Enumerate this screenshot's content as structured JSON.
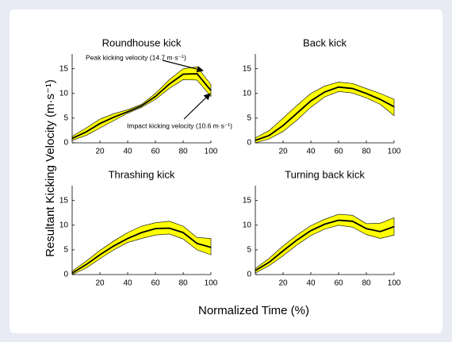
{
  "figure": {
    "xlabel": "Normalized Time (%)",
    "ylabel": "Resultant Kicking Velocity (m·s⁻¹)"
  },
  "chart_data": [
    {
      "type": "band-line",
      "title": "Roundhouse kick",
      "x": [
        0,
        10,
        20,
        30,
        40,
        50,
        60,
        70,
        80,
        90,
        100
      ],
      "values": [
        0.9,
        2.2,
        3.9,
        5.2,
        6.3,
        7.5,
        9.4,
        11.9,
        13.9,
        14.0,
        10.6
      ],
      "band_upper": [
        1.3,
        3.0,
        4.8,
        5.9,
        6.7,
        7.8,
        10.0,
        12.8,
        15.0,
        15.4,
        11.8
      ],
      "band_lower": [
        0.5,
        1.5,
        3.0,
        4.5,
        6.0,
        7.2,
        8.8,
        11.0,
        12.8,
        12.7,
        9.4
      ],
      "color": "#000000",
      "band_color": "#ffff00",
      "xlim": [
        0,
        100
      ],
      "xticks": [
        20,
        40,
        60,
        80,
        100
      ],
      "ylim": [
        0,
        18
      ],
      "yticks": [
        0,
        5,
        10,
        15
      ],
      "annotations": [
        "Peak kicking velocity (14.7 m·s⁻¹)",
        "Impact kicking velocity (10.6 m·s⁻¹)"
      ]
    },
    {
      "type": "band-line",
      "title": "Back kick",
      "x": [
        0,
        10,
        20,
        30,
        40,
        50,
        60,
        70,
        80,
        90,
        100
      ],
      "values": [
        0.5,
        1.5,
        3.5,
        6.0,
        8.5,
        10.3,
        11.3,
        11.0,
        10.0,
        8.8,
        7.3
      ],
      "band_upper": [
        1.0,
        2.5,
        5.0,
        7.6,
        10.0,
        11.5,
        12.3,
        12.0,
        11.0,
        10.0,
        8.8
      ],
      "band_lower": [
        0.0,
        0.8,
        2.3,
        4.6,
        7.2,
        9.3,
        10.4,
        10.1,
        9.1,
        7.8,
        5.5
      ],
      "color": "#000000",
      "band_color": "#ffff00",
      "xlim": [
        0,
        100
      ],
      "xticks": [
        20,
        40,
        60,
        80,
        100
      ],
      "ylim": [
        0,
        18
      ],
      "yticks": [
        0,
        5,
        10,
        15
      ]
    },
    {
      "type": "band-line",
      "title": "Thrashing kick",
      "x": [
        0,
        10,
        20,
        30,
        40,
        50,
        60,
        70,
        80,
        90,
        100
      ],
      "values": [
        0.3,
        2.0,
        4.0,
        5.8,
        7.3,
        8.5,
        9.3,
        9.4,
        8.5,
        6.3,
        5.5
      ],
      "band_upper": [
        0.7,
        2.7,
        4.9,
        6.8,
        8.5,
        9.8,
        10.5,
        10.8,
        9.8,
        7.5,
        7.3
      ],
      "band_lower": [
        0.0,
        1.3,
        3.2,
        5.0,
        6.5,
        7.3,
        8.0,
        8.2,
        7.2,
        5.0,
        4.0
      ],
      "color": "#000000",
      "band_color": "#ffff00",
      "xlim": [
        0,
        100
      ],
      "xticks": [
        20,
        40,
        60,
        80,
        100
      ],
      "ylim": [
        0,
        18
      ],
      "yticks": [
        0,
        5,
        10,
        15
      ]
    },
    {
      "type": "band-line",
      "title": "Turning back kick",
      "x": [
        0,
        10,
        20,
        30,
        40,
        50,
        60,
        70,
        80,
        90,
        100
      ],
      "values": [
        0.8,
        2.5,
        4.8,
        7.0,
        8.9,
        10.2,
        11.0,
        10.8,
        9.3,
        8.7,
        9.7
      ],
      "band_upper": [
        1.2,
        3.3,
        5.8,
        8.0,
        9.9,
        11.2,
        12.2,
        12.0,
        10.3,
        10.4,
        11.5
      ],
      "band_lower": [
        0.3,
        1.8,
        3.8,
        6.0,
        7.9,
        9.2,
        10.0,
        9.6,
        8.1,
        7.3,
        8.0
      ],
      "color": "#000000",
      "band_color": "#ffff00",
      "xlim": [
        0,
        100
      ],
      "xticks": [
        20,
        40,
        60,
        80,
        100
      ],
      "ylim": [
        0,
        18
      ],
      "yticks": [
        0,
        5,
        10,
        15
      ]
    }
  ]
}
